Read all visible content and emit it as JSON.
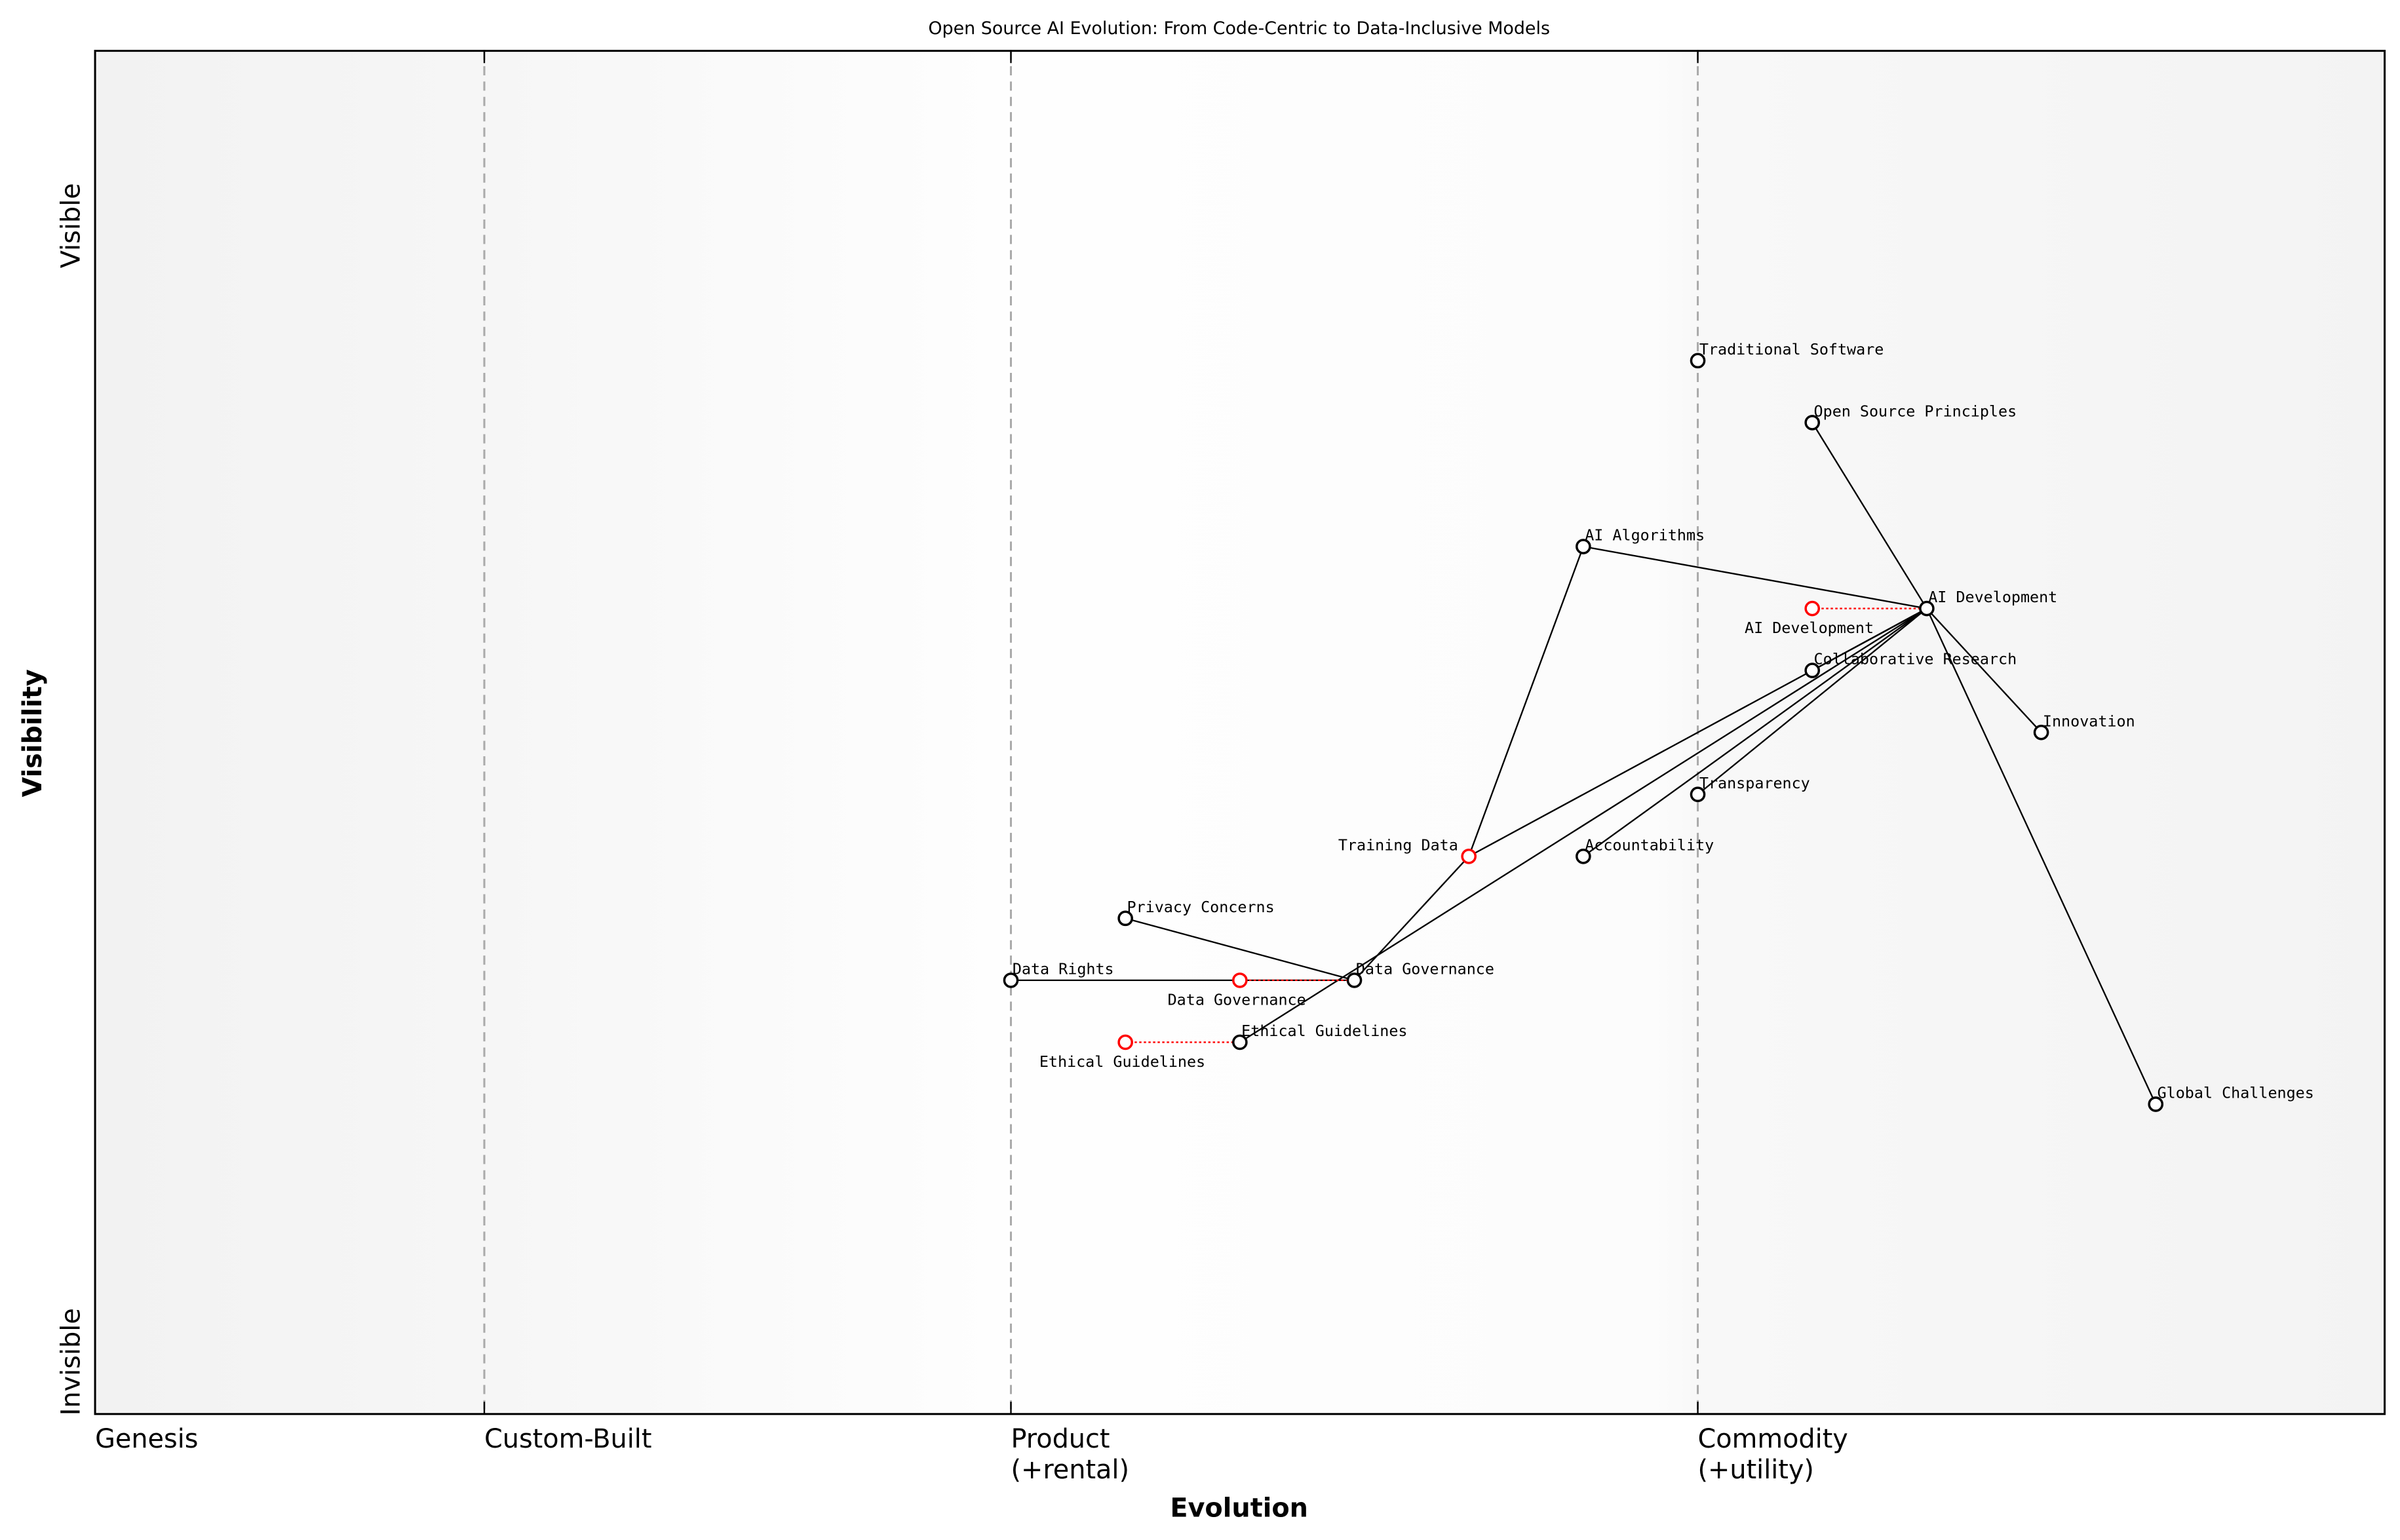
{
  "title": "Open Source AI Evolution: From Code-Centric to Data-Inclusive Models",
  "x_axis_title": "Evolution",
  "y_axis_title": "Visibility",
  "y_top_label": "Visible",
  "y_bottom_label": "Invisible",
  "stages": [
    {
      "label": "Genesis",
      "sub": "",
      "evolution": 0.0
    },
    {
      "label": "Custom-Built",
      "sub": "",
      "evolution": 0.17
    },
    {
      "label": "Product",
      "sub": "(+rental)",
      "evolution": 0.4
    },
    {
      "label": "Commodity",
      "sub": "(+utility)",
      "evolution": 0.7
    }
  ],
  "colors": {
    "component": "#000000",
    "evolving": "#ff0000",
    "divider": "#aaaaaa",
    "band": "#f3f3f3"
  },
  "chart_data": {
    "type": "wardley-map",
    "xlim": [
      0,
      1
    ],
    "ylim": [
      -0.05,
      1.05
    ],
    "components": [
      {
        "name": "Traditional Software",
        "evolution": 0.7,
        "visibility": 0.8
      },
      {
        "name": "Open Source Principles",
        "evolution": 0.75,
        "visibility": 0.75
      },
      {
        "name": "AI Algorithms",
        "evolution": 0.65,
        "visibility": 0.65
      },
      {
        "name": "AI Development",
        "evolution": 0.8,
        "visibility": 0.6
      },
      {
        "name": "Collaborative Research",
        "evolution": 0.75,
        "visibility": 0.55
      },
      {
        "name": "Innovation",
        "evolution": 0.85,
        "visibility": 0.5
      },
      {
        "name": "Transparency",
        "evolution": 0.7,
        "visibility": 0.45
      },
      {
        "name": "Training Data",
        "evolution": 0.6,
        "visibility": 0.4,
        "evolving": true
      },
      {
        "name": "Accountability",
        "evolution": 0.65,
        "visibility": 0.4
      },
      {
        "name": "Privacy Concerns",
        "evolution": 0.45,
        "visibility": 0.35
      },
      {
        "name": "Data Rights",
        "evolution": 0.4,
        "visibility": 0.3
      },
      {
        "name": "Data Governance",
        "evolution": 0.55,
        "visibility": 0.3
      },
      {
        "name": "Ethical Guidelines",
        "evolution": 0.5,
        "visibility": 0.25
      },
      {
        "name": "Global Challenges",
        "evolution": 0.9,
        "visibility": 0.2
      }
    ],
    "evolutions": [
      {
        "name": "AI Development",
        "from": 0.75,
        "to": 0.8,
        "visibility": 0.6
      },
      {
        "name": "Data Governance",
        "from": 0.5,
        "to": 0.55,
        "visibility": 0.3
      },
      {
        "name": "Ethical Guidelines",
        "from": 0.45,
        "to": 0.5,
        "visibility": 0.25
      }
    ],
    "links": [
      [
        "Open Source Principles",
        "AI Development"
      ],
      [
        "AI Algorithms",
        "AI Development"
      ],
      [
        "AI Algorithms",
        "Training Data"
      ],
      [
        "AI Development",
        "Innovation"
      ],
      [
        "AI Development",
        "Global Challenges"
      ],
      [
        "AI Development",
        "Collaborative Research"
      ],
      [
        "AI Development",
        "Training Data"
      ],
      [
        "AI Development",
        "Ethical Guidelines"
      ],
      [
        "AI Development",
        "Accountability"
      ],
      [
        "AI Development",
        "Transparency"
      ],
      [
        "Training Data",
        "Data Governance"
      ],
      [
        "Privacy Concerns",
        "Data Governance"
      ],
      [
        "Data Rights",
        "Data Governance"
      ]
    ]
  }
}
